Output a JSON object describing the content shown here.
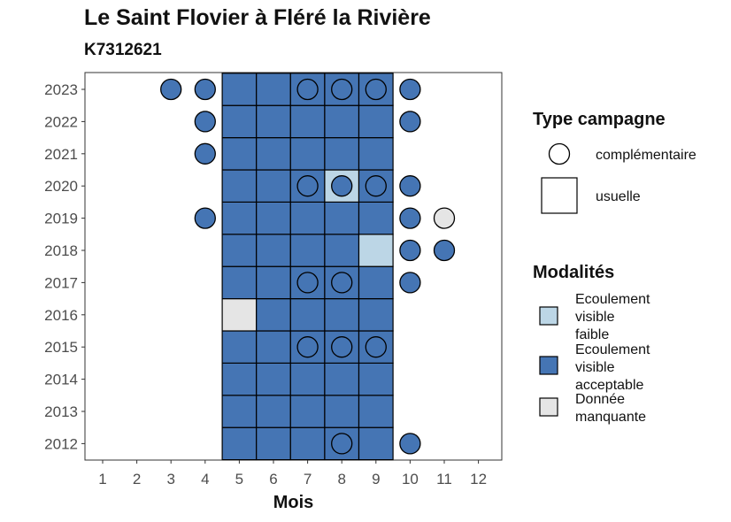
{
  "chart_data": {
    "type": "heatmap",
    "title": "Le Saint Flovier à Fléré la Rivière",
    "subtitle": "K7312621",
    "xlabel": "Mois",
    "ylabel": "",
    "x": [
      "1",
      "2",
      "3",
      "4",
      "5",
      "6",
      "7",
      "8",
      "9",
      "10",
      "11",
      "12"
    ],
    "y": [
      "2012",
      "2013",
      "2014",
      "2015",
      "2016",
      "2017",
      "2018",
      "2019",
      "2020",
      "2021",
      "2022",
      "2023"
    ],
    "grid": false,
    "colors": {
      "Ecoulement visible faible": "#bcd6e6",
      "Ecoulement visible acceptable": "#4575b4",
      "Donnée manquante": "#e5e5e5"
    },
    "cells": [
      {
        "year": "2012",
        "month": 5,
        "modalite": "Ecoulement visible acceptable",
        "campagne": "usuelle"
      },
      {
        "year": "2012",
        "month": 6,
        "modalite": "Ecoulement visible acceptable",
        "campagne": "usuelle"
      },
      {
        "year": "2012",
        "month": 7,
        "modalite": "Ecoulement visible acceptable",
        "campagne": "usuelle"
      },
      {
        "year": "2012",
        "month": 8,
        "modalite": "Ecoulement visible acceptable",
        "campagne": "usuelle"
      },
      {
        "year": "2012",
        "month": 8,
        "modalite": "Ecoulement visible acceptable",
        "campagne": "complémentaire"
      },
      {
        "year": "2012",
        "month": 9,
        "modalite": "Ecoulement visible acceptable",
        "campagne": "usuelle"
      },
      {
        "year": "2012",
        "month": 10,
        "modalite": "Ecoulement visible acceptable",
        "campagne": "complémentaire"
      },
      {
        "year": "2013",
        "month": 5,
        "modalite": "Ecoulement visible acceptable",
        "campagne": "usuelle"
      },
      {
        "year": "2013",
        "month": 6,
        "modalite": "Ecoulement visible acceptable",
        "campagne": "usuelle"
      },
      {
        "year": "2013",
        "month": 7,
        "modalite": "Ecoulement visible acceptable",
        "campagne": "usuelle"
      },
      {
        "year": "2013",
        "month": 8,
        "modalite": "Ecoulement visible acceptable",
        "campagne": "usuelle"
      },
      {
        "year": "2013",
        "month": 9,
        "modalite": "Ecoulement visible acceptable",
        "campagne": "usuelle"
      },
      {
        "year": "2014",
        "month": 5,
        "modalite": "Ecoulement visible acceptable",
        "campagne": "usuelle"
      },
      {
        "year": "2014",
        "month": 6,
        "modalite": "Ecoulement visible acceptable",
        "campagne": "usuelle"
      },
      {
        "year": "2014",
        "month": 7,
        "modalite": "Ecoulement visible acceptable",
        "campagne": "usuelle"
      },
      {
        "year": "2014",
        "month": 8,
        "modalite": "Ecoulement visible acceptable",
        "campagne": "usuelle"
      },
      {
        "year": "2014",
        "month": 9,
        "modalite": "Ecoulement visible acceptable",
        "campagne": "usuelle"
      },
      {
        "year": "2015",
        "month": 5,
        "modalite": "Ecoulement visible acceptable",
        "campagne": "usuelle"
      },
      {
        "year": "2015",
        "month": 6,
        "modalite": "Ecoulement visible acceptable",
        "campagne": "usuelle"
      },
      {
        "year": "2015",
        "month": 7,
        "modalite": "Ecoulement visible acceptable",
        "campagne": "usuelle"
      },
      {
        "year": "2015",
        "month": 7,
        "modalite": "Ecoulement visible acceptable",
        "campagne": "complémentaire"
      },
      {
        "year": "2015",
        "month": 8,
        "modalite": "Ecoulement visible acceptable",
        "campagne": "usuelle"
      },
      {
        "year": "2015",
        "month": 8,
        "modalite": "Ecoulement visible acceptable",
        "campagne": "complémentaire"
      },
      {
        "year": "2015",
        "month": 9,
        "modalite": "Ecoulement visible acceptable",
        "campagne": "usuelle"
      },
      {
        "year": "2015",
        "month": 9,
        "modalite": "Ecoulement visible acceptable",
        "campagne": "complémentaire"
      },
      {
        "year": "2016",
        "month": 5,
        "modalite": "Donnée manquante",
        "campagne": "usuelle"
      },
      {
        "year": "2016",
        "month": 6,
        "modalite": "Ecoulement visible acceptable",
        "campagne": "usuelle"
      },
      {
        "year": "2016",
        "month": 7,
        "modalite": "Ecoulement visible acceptable",
        "campagne": "usuelle"
      },
      {
        "year": "2016",
        "month": 8,
        "modalite": "Ecoulement visible acceptable",
        "campagne": "usuelle"
      },
      {
        "year": "2016",
        "month": 9,
        "modalite": "Ecoulement visible acceptable",
        "campagne": "usuelle"
      },
      {
        "year": "2017",
        "month": 5,
        "modalite": "Ecoulement visible acceptable",
        "campagne": "usuelle"
      },
      {
        "year": "2017",
        "month": 6,
        "modalite": "Ecoulement visible acceptable",
        "campagne": "usuelle"
      },
      {
        "year": "2017",
        "month": 7,
        "modalite": "Ecoulement visible acceptable",
        "campagne": "usuelle"
      },
      {
        "year": "2017",
        "month": 7,
        "modalite": "Ecoulement visible acceptable",
        "campagne": "complémentaire"
      },
      {
        "year": "2017",
        "month": 8,
        "modalite": "Ecoulement visible acceptable",
        "campagne": "usuelle"
      },
      {
        "year": "2017",
        "month": 8,
        "modalite": "Ecoulement visible acceptable",
        "campagne": "complémentaire"
      },
      {
        "year": "2017",
        "month": 9,
        "modalite": "Ecoulement visible acceptable",
        "campagne": "usuelle"
      },
      {
        "year": "2017",
        "month": 10,
        "modalite": "Ecoulement visible acceptable",
        "campagne": "complémentaire"
      },
      {
        "year": "2018",
        "month": 5,
        "modalite": "Ecoulement visible acceptable",
        "campagne": "usuelle"
      },
      {
        "year": "2018",
        "month": 6,
        "modalite": "Ecoulement visible acceptable",
        "campagne": "usuelle"
      },
      {
        "year": "2018",
        "month": 7,
        "modalite": "Ecoulement visible acceptable",
        "campagne": "usuelle"
      },
      {
        "year": "2018",
        "month": 8,
        "modalite": "Ecoulement visible acceptable",
        "campagne": "usuelle"
      },
      {
        "year": "2018",
        "month": 9,
        "modalite": "Ecoulement visible faible",
        "campagne": "usuelle"
      },
      {
        "year": "2018",
        "month": 10,
        "modalite": "Ecoulement visible acceptable",
        "campagne": "complémentaire"
      },
      {
        "year": "2018",
        "month": 11,
        "modalite": "Ecoulement visible acceptable",
        "campagne": "complémentaire"
      },
      {
        "year": "2019",
        "month": 4,
        "modalite": "Ecoulement visible acceptable",
        "campagne": "complémentaire"
      },
      {
        "year": "2019",
        "month": 5,
        "modalite": "Ecoulement visible acceptable",
        "campagne": "usuelle"
      },
      {
        "year": "2019",
        "month": 6,
        "modalite": "Ecoulement visible acceptable",
        "campagne": "usuelle"
      },
      {
        "year": "2019",
        "month": 7,
        "modalite": "Ecoulement visible acceptable",
        "campagne": "usuelle"
      },
      {
        "year": "2019",
        "month": 8,
        "modalite": "Ecoulement visible acceptable",
        "campagne": "usuelle"
      },
      {
        "year": "2019",
        "month": 9,
        "modalite": "Ecoulement visible acceptable",
        "campagne": "usuelle"
      },
      {
        "year": "2019",
        "month": 10,
        "modalite": "Ecoulement visible acceptable",
        "campagne": "complémentaire"
      },
      {
        "year": "2019",
        "month": 11,
        "modalite": "Donnée manquante",
        "campagne": "complémentaire"
      },
      {
        "year": "2020",
        "month": 5,
        "modalite": "Ecoulement visible acceptable",
        "campagne": "usuelle"
      },
      {
        "year": "2020",
        "month": 6,
        "modalite": "Ecoulement visible acceptable",
        "campagne": "usuelle"
      },
      {
        "year": "2020",
        "month": 7,
        "modalite": "Ecoulement visible acceptable",
        "campagne": "usuelle"
      },
      {
        "year": "2020",
        "month": 7,
        "modalite": "Ecoulement visible acceptable",
        "campagne": "complémentaire"
      },
      {
        "year": "2020",
        "month": 8,
        "modalite": "Ecoulement visible faible",
        "campagne": "usuelle"
      },
      {
        "year": "2020",
        "month": 8,
        "modalite": "Ecoulement visible acceptable",
        "campagne": "complémentaire"
      },
      {
        "year": "2020",
        "month": 9,
        "modalite": "Ecoulement visible acceptable",
        "campagne": "usuelle"
      },
      {
        "year": "2020",
        "month": 9,
        "modalite": "Ecoulement visible acceptable",
        "campagne": "complémentaire"
      },
      {
        "year": "2020",
        "month": 10,
        "modalite": "Ecoulement visible acceptable",
        "campagne": "complémentaire"
      },
      {
        "year": "2021",
        "month": 4,
        "modalite": "Ecoulement visible acceptable",
        "campagne": "complémentaire"
      },
      {
        "year": "2021",
        "month": 5,
        "modalite": "Ecoulement visible acceptable",
        "campagne": "usuelle"
      },
      {
        "year": "2021",
        "month": 6,
        "modalite": "Ecoulement visible acceptable",
        "campagne": "usuelle"
      },
      {
        "year": "2021",
        "month": 7,
        "modalite": "Ecoulement visible acceptable",
        "campagne": "usuelle"
      },
      {
        "year": "2021",
        "month": 8,
        "modalite": "Ecoulement visible acceptable",
        "campagne": "usuelle"
      },
      {
        "year": "2021",
        "month": 9,
        "modalite": "Ecoulement visible acceptable",
        "campagne": "usuelle"
      },
      {
        "year": "2022",
        "month": 4,
        "modalite": "Ecoulement visible acceptable",
        "campagne": "complémentaire"
      },
      {
        "year": "2022",
        "month": 5,
        "modalite": "Ecoulement visible acceptable",
        "campagne": "usuelle"
      },
      {
        "year": "2022",
        "month": 6,
        "modalite": "Ecoulement visible acceptable",
        "campagne": "usuelle"
      },
      {
        "year": "2022",
        "month": 7,
        "modalite": "Ecoulement visible acceptable",
        "campagne": "usuelle"
      },
      {
        "year": "2022",
        "month": 8,
        "modalite": "Ecoulement visible acceptable",
        "campagne": "usuelle"
      },
      {
        "year": "2022",
        "month": 9,
        "modalite": "Ecoulement visible acceptable",
        "campagne": "usuelle"
      },
      {
        "year": "2022",
        "month": 10,
        "modalite": "Ecoulement visible acceptable",
        "campagne": "complémentaire"
      },
      {
        "year": "2023",
        "month": 3,
        "modalite": "Ecoulement visible acceptable",
        "campagne": "complémentaire"
      },
      {
        "year": "2023",
        "month": 4,
        "modalite": "Ecoulement visible acceptable",
        "campagne": "complémentaire"
      },
      {
        "year": "2023",
        "month": 5,
        "modalite": "Ecoulement visible acceptable",
        "campagne": "usuelle"
      },
      {
        "year": "2023",
        "month": 6,
        "modalite": "Ecoulement visible acceptable",
        "campagne": "usuelle"
      },
      {
        "year": "2023",
        "month": 7,
        "modalite": "Ecoulement visible acceptable",
        "campagne": "usuelle"
      },
      {
        "year": "2023",
        "month": 7,
        "modalite": "Ecoulement visible acceptable",
        "campagne": "complémentaire"
      },
      {
        "year": "2023",
        "month": 8,
        "modalite": "Ecoulement visible acceptable",
        "campagne": "usuelle"
      },
      {
        "year": "2023",
        "month": 8,
        "modalite": "Ecoulement visible acceptable",
        "campagne": "complémentaire"
      },
      {
        "year": "2023",
        "month": 9,
        "modalite": "Ecoulement visible acceptable",
        "campagne": "usuelle"
      },
      {
        "year": "2023",
        "month": 9,
        "modalite": "Ecoulement visible acceptable",
        "campagne": "complémentaire"
      },
      {
        "year": "2023",
        "month": 10,
        "modalite": "Ecoulement visible acceptable",
        "campagne": "complémentaire"
      }
    ],
    "legend": {
      "placement": "right",
      "campagne_title": "Type campagne",
      "campagne_items": [
        "complémentaire",
        "usuelle"
      ],
      "modalite_title": "Modalités",
      "modalite_items": [
        {
          "lines": [
            "Ecoulement",
            "visible",
            "faible"
          ],
          "key": "Ecoulement visible faible"
        },
        {
          "lines": [
            "Ecoulement",
            "visible",
            "acceptable"
          ],
          "key": "Ecoulement visible acceptable"
        },
        {
          "lines": [
            "Donnée",
            "manquante"
          ],
          "key": "Donnée manquante"
        }
      ]
    }
  }
}
